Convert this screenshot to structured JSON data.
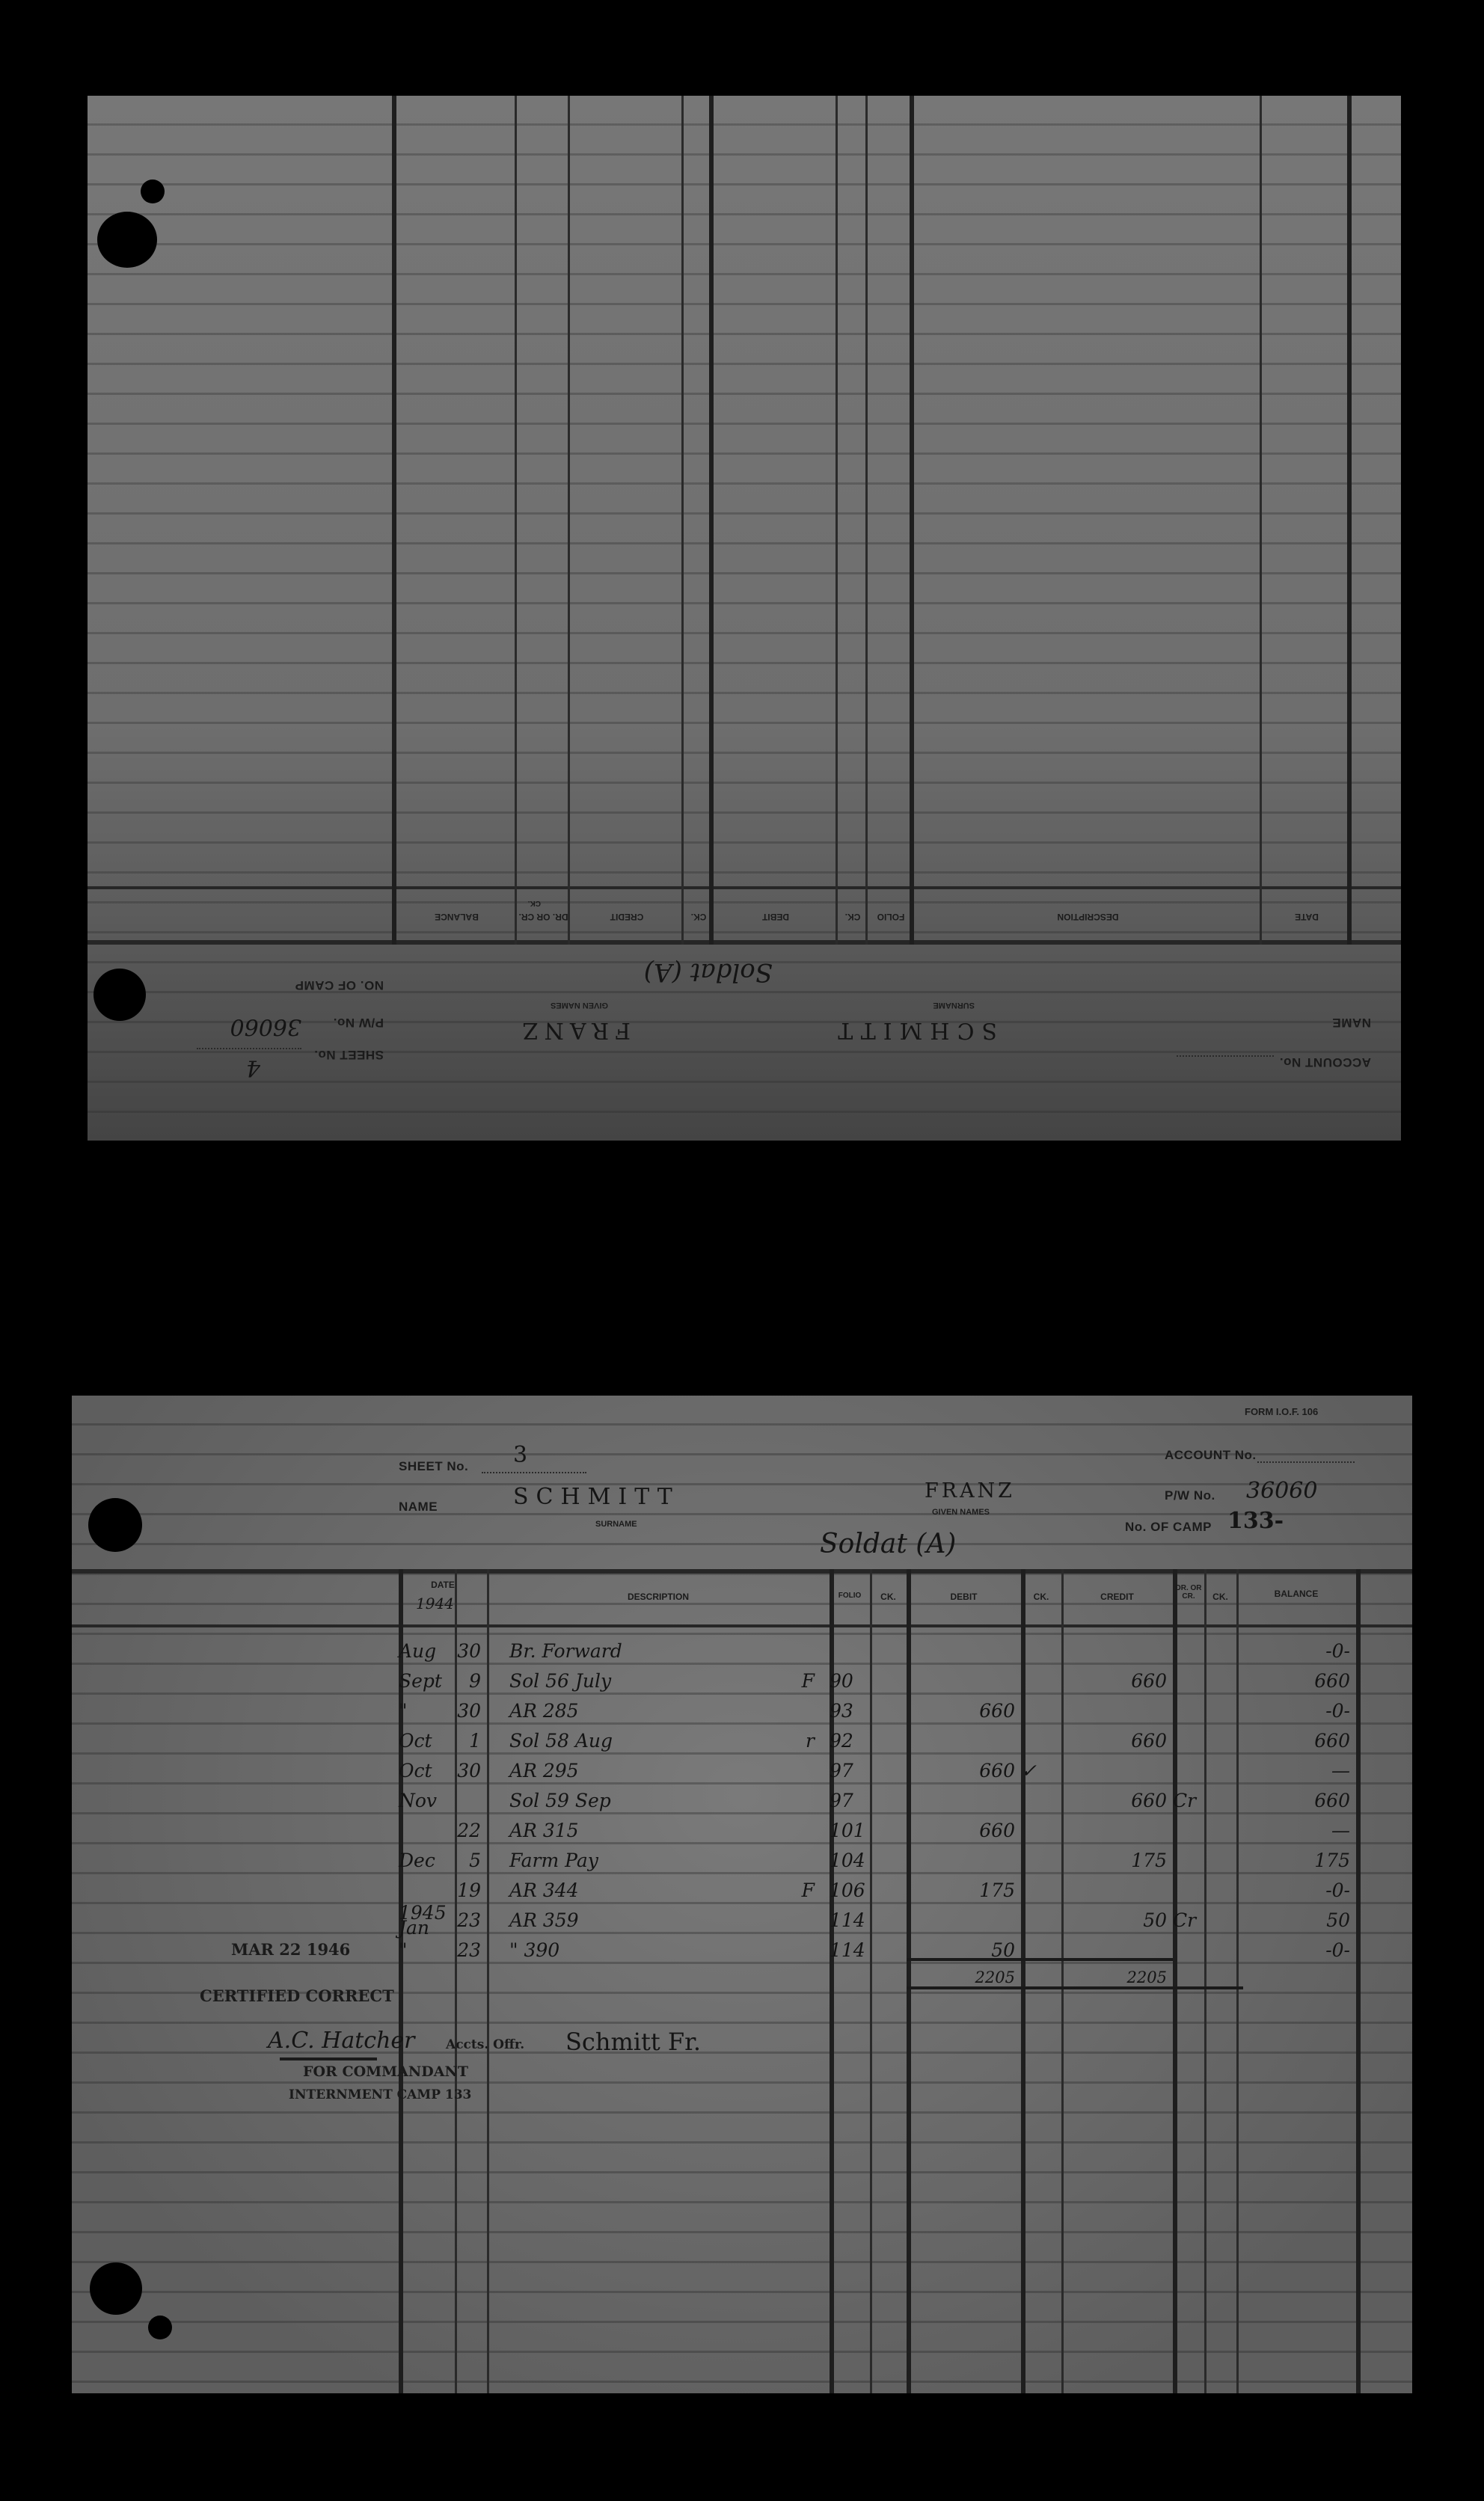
{
  "card_back": {
    "orientation": "upside-down",
    "account_label": "ACCOUNT No.",
    "name_label": "NAME",
    "surname": "SCHMITT",
    "surname_label": "SURNAME",
    "given_names": "FRANZ",
    "given_names_label": "GIVEN NAMES",
    "pw_label": "P/W No.",
    "pw_number": "36060",
    "camp_label": "NO. OF CAMP",
    "sheet_label": "SHEET No.",
    "sheet_number": "4",
    "rank": "Soldat (A)",
    "columns": [
      "DATE",
      "DESCRIPTION",
      "FOLIO",
      "CK.",
      "DEBIT",
      "CK.",
      "CREDIT",
      "DR. OR CR.",
      "CK.",
      "BALANCE"
    ]
  },
  "card_front": {
    "form_id": "FORM I.O.F. 106",
    "account_label": "ACCOUNT No.",
    "sheet_label": "SHEET No.",
    "sheet_number": "3",
    "name_label": "NAME",
    "surname": "SCHMITT",
    "surname_label": "SURNAME",
    "given_names": "FRANZ",
    "given_names_label": "GIVEN NAMES",
    "pw_label": "P/W No.",
    "pw_number": "36060",
    "camp_label": "No. OF CAMP",
    "camp_number": "133-",
    "rank": "Soldat (A)",
    "columns": {
      "date": "DATE",
      "year": "1944",
      "description": "DESCRIPTION",
      "folio": "FOLIO",
      "ck1": "CK.",
      "debit": "DEBIT",
      "ck2": "CK.",
      "credit": "CREDIT",
      "drcr": "DR. OR CR.",
      "ck3": "CK.",
      "balance": "BALANCE"
    },
    "rows": [
      {
        "month": "Aug",
        "day": "30",
        "description": "Br. Forward",
        "mark": "",
        "folio": "",
        "debit": "",
        "ck": "",
        "credit": "",
        "drcr": "",
        "balance": "-0-"
      },
      {
        "month": "Sept",
        "day": "9",
        "description": "Sol 56 July",
        "mark": "F",
        "folio": "90",
        "debit": "",
        "ck": "",
        "credit": "660",
        "drcr": "",
        "balance": "660"
      },
      {
        "month": "\"",
        "day": "30",
        "description": "AR 285",
        "mark": "",
        "folio": "93",
        "debit": "660",
        "ck": "",
        "credit": "",
        "drcr": "",
        "balance": "-0-"
      },
      {
        "month": "Oct",
        "day": "1",
        "description": "Sol 58 Aug",
        "mark": "r",
        "folio": "92",
        "debit": "",
        "ck": "",
        "credit": "660",
        "drcr": "",
        "balance": "660"
      },
      {
        "month": "Oct",
        "day": "30",
        "description": "AR 295",
        "mark": "",
        "folio": "97",
        "debit": "660",
        "ck": "✓",
        "credit": "",
        "drcr": "",
        "balance": "—"
      },
      {
        "month": "Nov",
        "day": "",
        "description": "Sol 59 Sep",
        "mark": "",
        "folio": "97",
        "debit": "",
        "ck": "",
        "credit": "660",
        "drcr": "Cr",
        "balance": "660"
      },
      {
        "month": "",
        "day": "22",
        "description": "AR 315",
        "mark": "",
        "folio": "101",
        "debit": "660",
        "ck": "",
        "credit": "",
        "drcr": "",
        "balance": "—"
      },
      {
        "month": "Dec",
        "day": "5",
        "description": "Farm Pay",
        "mark": "",
        "folio": "104",
        "debit": "",
        "ck": "",
        "credit": "175",
        "drcr": "",
        "balance": "175"
      },
      {
        "month": "",
        "day": "19",
        "description": "AR 344",
        "mark": "F",
        "folio": "106",
        "debit": "175",
        "ck": "",
        "credit": "",
        "drcr": "",
        "balance": "-0-"
      },
      {
        "month": "1945 Jan",
        "day": "23",
        "description": "AR 359",
        "mark": "",
        "folio": "114",
        "debit": "",
        "ck": "",
        "credit": "50",
        "drcr": "Cr",
        "balance": "50"
      },
      {
        "month": "\"",
        "day": "23",
        "description": "\" 390",
        "mark": "",
        "folio": "114",
        "debit": "50",
        "ck": "",
        "credit": "",
        "drcr": "",
        "balance": "-0-"
      }
    ],
    "totals": {
      "debit": "2205",
      "credit": "2205"
    },
    "stamp": {
      "date": "MAR 22 1946",
      "certified": "CERTIFIED CORRECT",
      "signature": "A.C. Hatcher",
      "officer": "Accts. Offr.",
      "prisoner_signature": "Schmitt Fr.",
      "for_line": "FOR COMMANDANT",
      "camp_line": "INTERNMENT CAMP 133"
    }
  }
}
